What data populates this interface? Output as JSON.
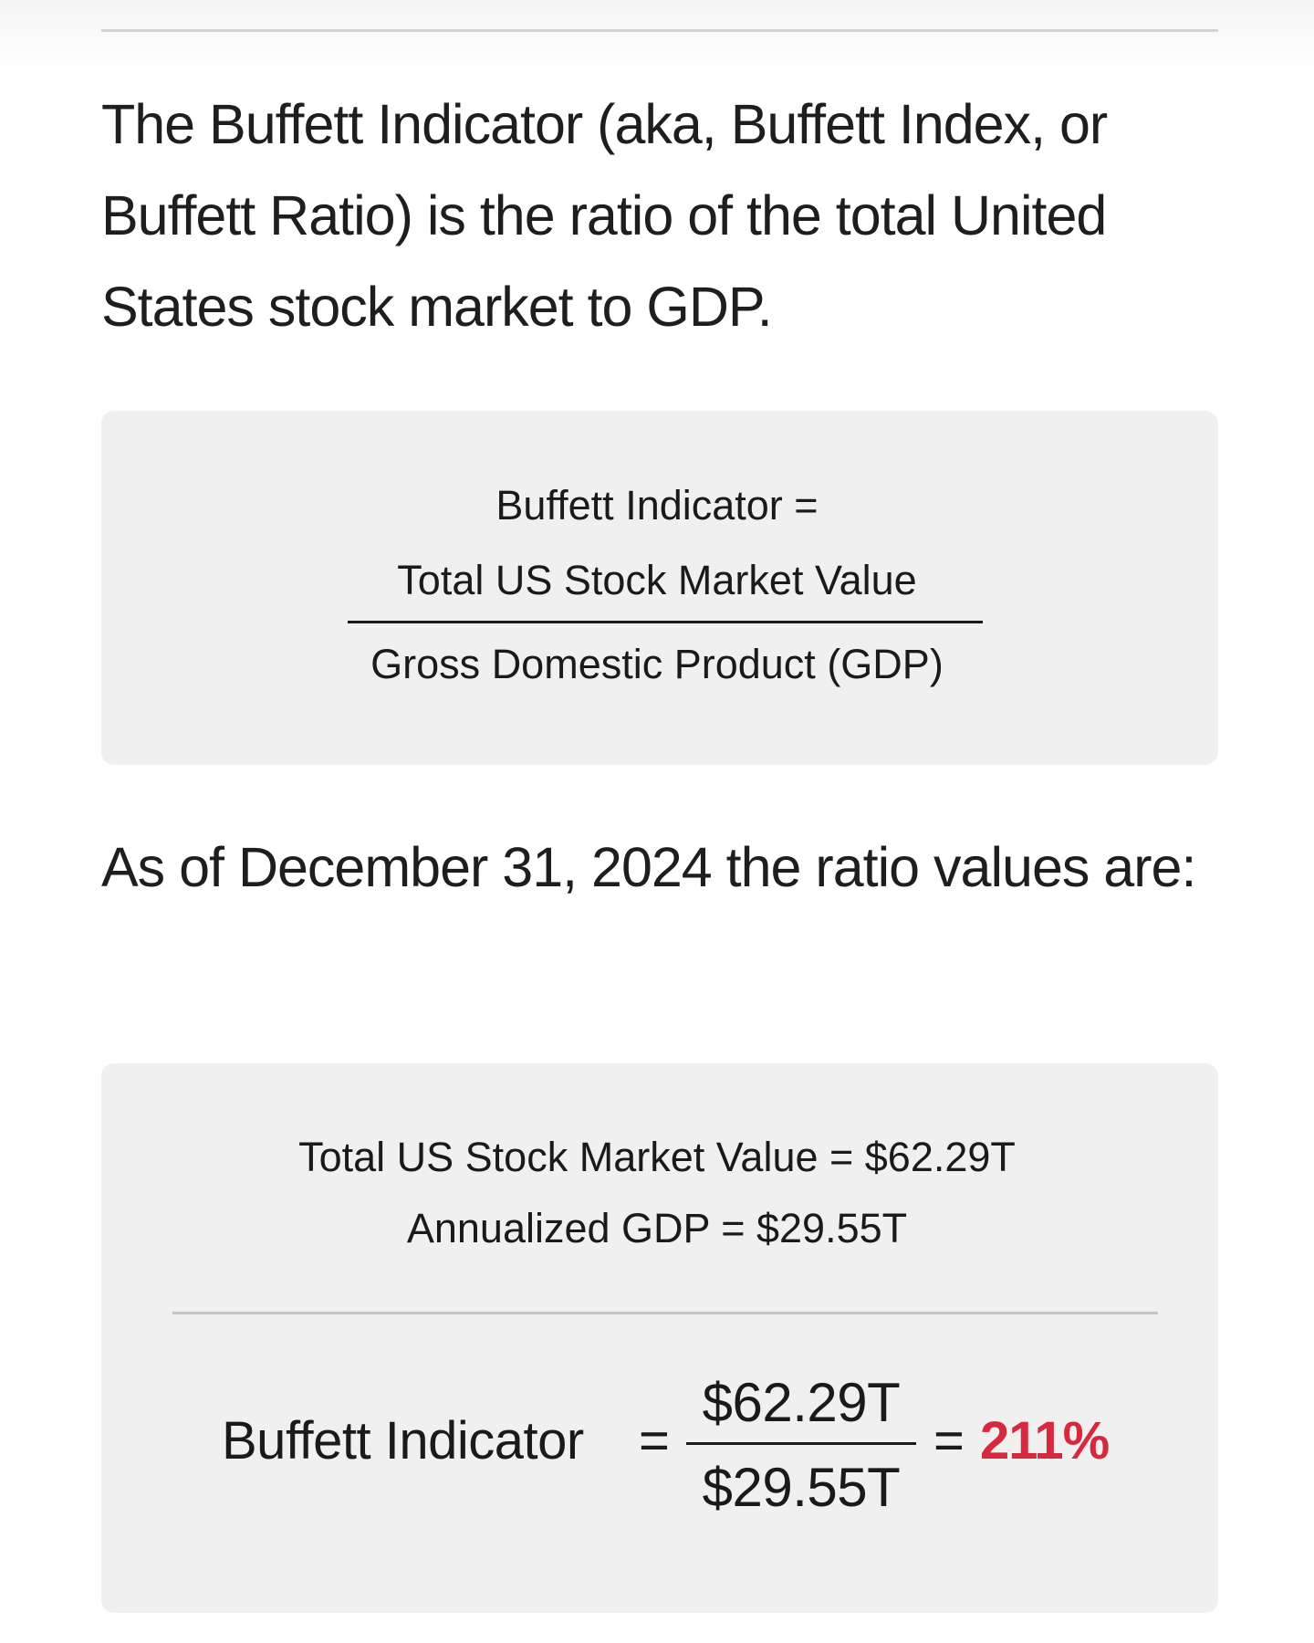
{
  "intro_text": "The Buffett Indicator (aka, Buffett Index, or Buffett Ratio) is the ratio of the total United States stock market to GDP.",
  "formula": {
    "lhs": "Buffett Indicator =",
    "numerator": "Total US Stock Market Value",
    "denominator": "Gross Domestic Product (GDP)"
  },
  "as_of_text": "As of December 31, 2024 the ratio values are:",
  "values": {
    "market_value_line": "Total US Stock Market Value = $62.29T",
    "gdp_line": "Annualized GDP = $29.55T"
  },
  "calculation": {
    "label": "Buffett Indicator",
    "equals": "=",
    "numerator": "$62.29T",
    "denominator": "$29.55T",
    "result": "211%",
    "result_color": "#d6293e"
  },
  "colors": {
    "text": "#1a1a1a",
    "card_background": "#f0f0f0",
    "accent": "#d6293e"
  }
}
